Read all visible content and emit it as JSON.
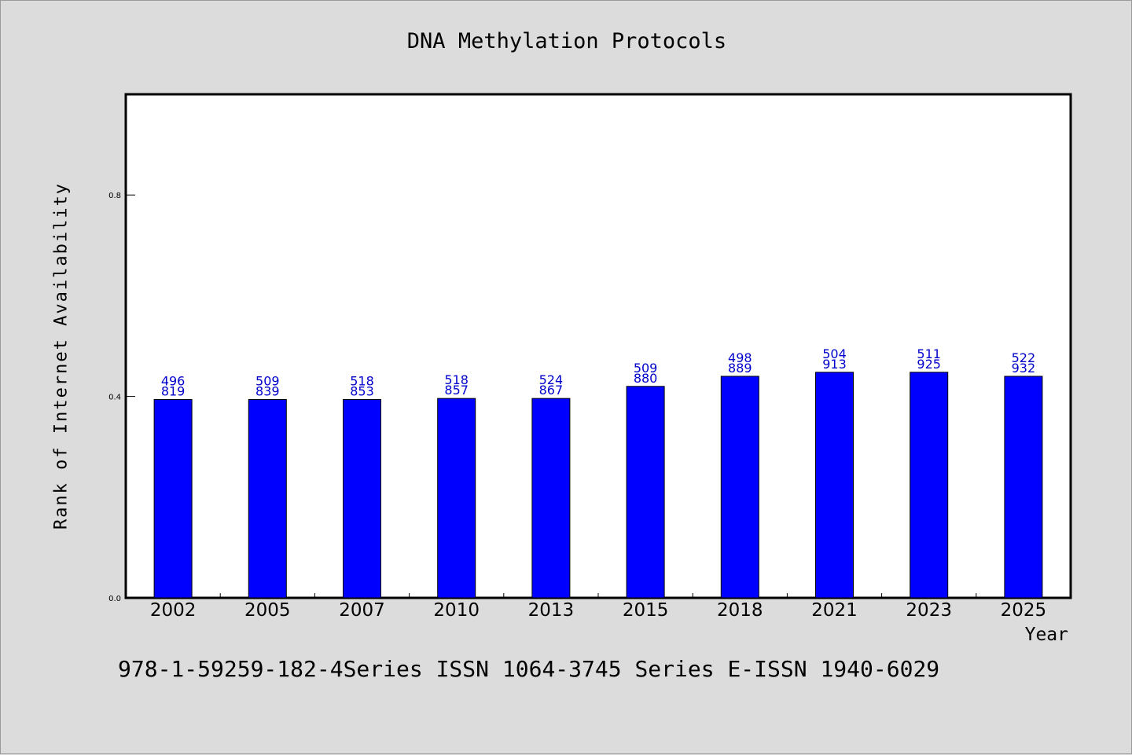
{
  "chart_data": {
    "type": "bar",
    "title": "DNA Methylation Protocols",
    "xlabel": "Year",
    "ylabel": "Rank of Internet Availability",
    "categories": [
      "2002",
      "2005",
      "2007",
      "2010",
      "2013",
      "2015",
      "2018",
      "2021",
      "2023",
      "2025"
    ],
    "values": [
      0.394,
      0.394,
      0.394,
      0.396,
      0.396,
      0.42,
      0.44,
      0.448,
      0.448,
      0.44
    ],
    "data_labels": [
      [
        "496",
        "819"
      ],
      [
        "509",
        "839"
      ],
      [
        "518",
        "853"
      ],
      [
        "518",
        "857"
      ],
      [
        "524",
        "867"
      ],
      [
        "509",
        "880"
      ],
      [
        "498",
        "889"
      ],
      [
        "504",
        "913"
      ],
      [
        "511",
        "925"
      ],
      [
        "522",
        "932"
      ]
    ],
    "yticks": [
      "0.0",
      "0.4",
      "0.8"
    ],
    "ylim": [
      0,
      1
    ],
    "grid": false,
    "bar_color": "#0000ff",
    "label_color": "#0000cc"
  },
  "footnote": "978-1-59259-182-4Series ISSN 1064-3745 Series E-ISSN 1940-6029"
}
